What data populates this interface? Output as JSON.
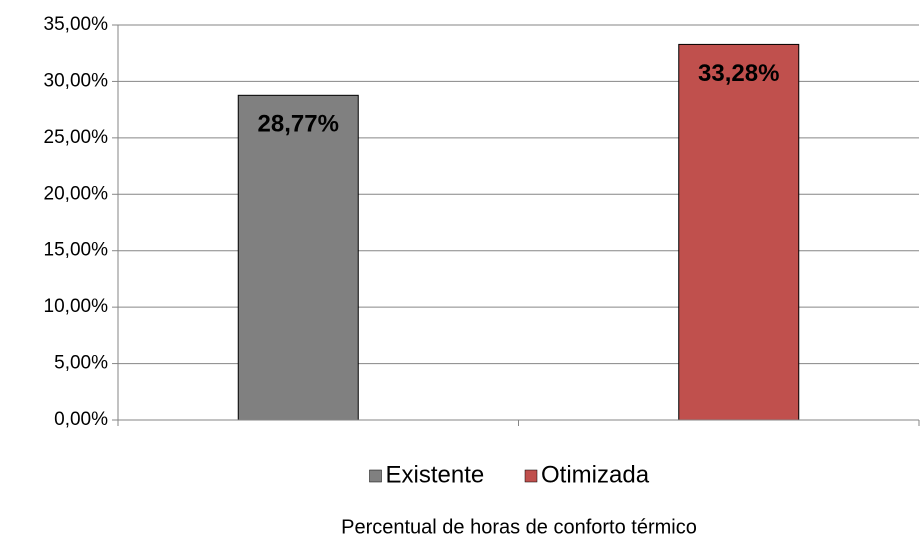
{
  "chart_data": {
    "type": "bar",
    "x_label": "Percentual de horas de conforto térmico",
    "categories": [
      null,
      null
    ],
    "series": [
      {
        "name": "Existente",
        "color": "#808080",
        "values": [
          28.77,
          null
        ],
        "value_labels": [
          "28,77%",
          null
        ]
      },
      {
        "name": "Otimizada",
        "color": "#c0504d",
        "values": [
          null,
          33.28
        ],
        "value_labels": [
          null,
          "33,28%"
        ]
      }
    ],
    "ylim": [
      0,
      35
    ],
    "yticks": [
      {
        "value": 0,
        "label": "0,00%"
      },
      {
        "value": 5,
        "label": "5,00%"
      },
      {
        "value": 10,
        "label": "10,00%"
      },
      {
        "value": 15,
        "label": "15,00%"
      },
      {
        "value": 20,
        "label": "20,00%"
      },
      {
        "value": 25,
        "label": "25,00%"
      },
      {
        "value": 30,
        "label": "30,00%"
      },
      {
        "value": 35,
        "label": "35,00%"
      }
    ],
    "grid": true,
    "legend": "bottom"
  }
}
